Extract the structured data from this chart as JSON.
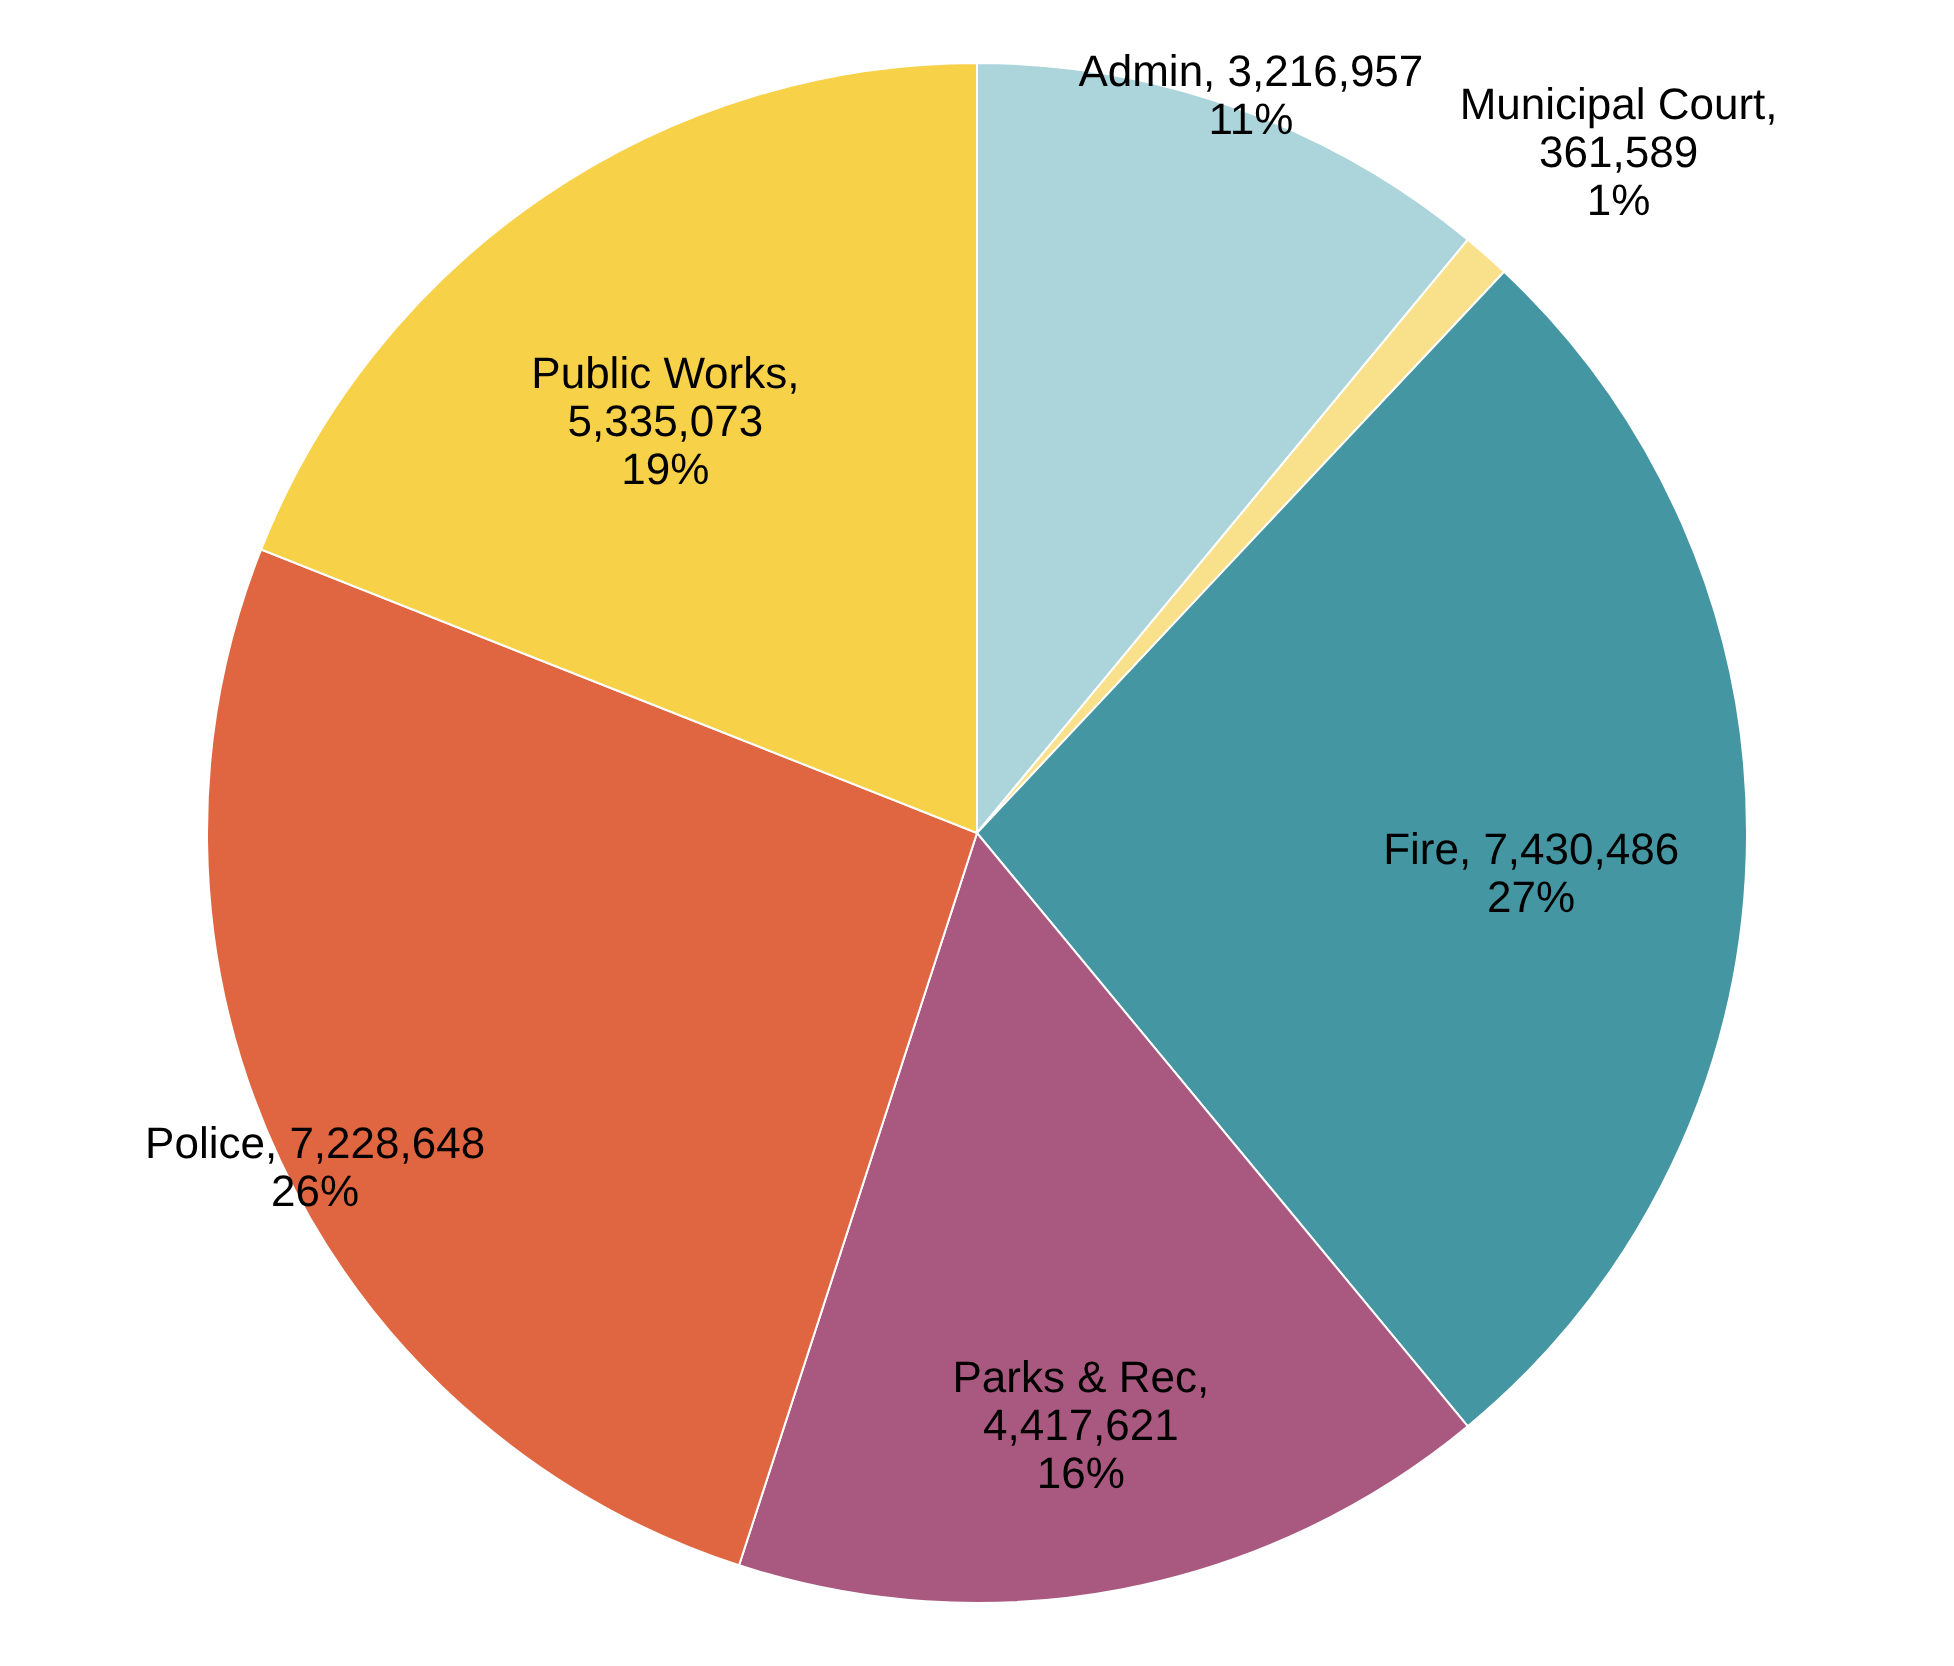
{
  "chart_data": {
    "type": "pie",
    "categories": [
      "Admin, 3,216,957",
      "Municipal Court, 361,589",
      "Fire, 7,430,486",
      "Parks & Rec, 4,417,621",
      "Police, 7,228,648",
      "Public Works, 5,335,073"
    ],
    "values": [
      11,
      1,
      27,
      16,
      26,
      19
    ],
    "colors": [
      "#abd4db",
      "#f9e08a",
      "#4496a2",
      "#a9597f",
      "#e06641",
      "#f7d147"
    ],
    "value_labels": [
      "11%",
      "1%",
      "27%",
      "16%",
      "26%",
      "19%"
    ],
    "legend": false
  }
}
